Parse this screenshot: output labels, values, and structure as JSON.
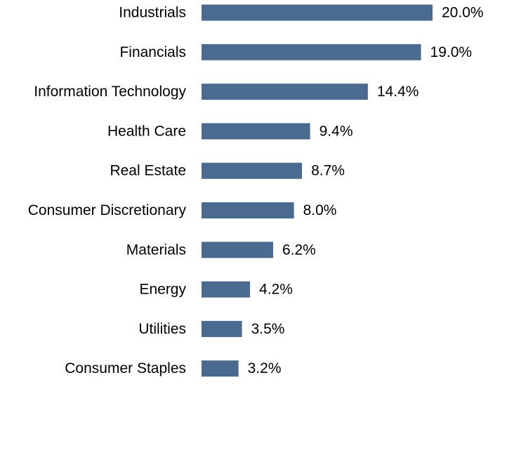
{
  "chart_data": {
    "type": "bar",
    "orientation": "horizontal",
    "categories": [
      "Industrials",
      "Financials",
      "Information Technology",
      "Health Care",
      "Real Estate",
      "Consumer Discretionary",
      "Materials",
      "Energy",
      "Utilities",
      "Consumer Staples"
    ],
    "values": [
      20.0,
      19.0,
      14.4,
      9.4,
      8.7,
      8.0,
      6.2,
      4.2,
      3.5,
      3.2
    ],
    "value_labels": [
      "20.0%",
      "19.0%",
      "14.4%",
      "9.4%",
      "8.7%",
      "8.0%",
      "6.2%",
      "4.2%",
      "3.5%",
      "3.2%"
    ],
    "title": "",
    "xlabel": "",
    "ylabel": "",
    "xlim": [
      0,
      20.0
    ],
    "grid": false,
    "legend": "none",
    "bar_color": "#4a6b8f"
  }
}
